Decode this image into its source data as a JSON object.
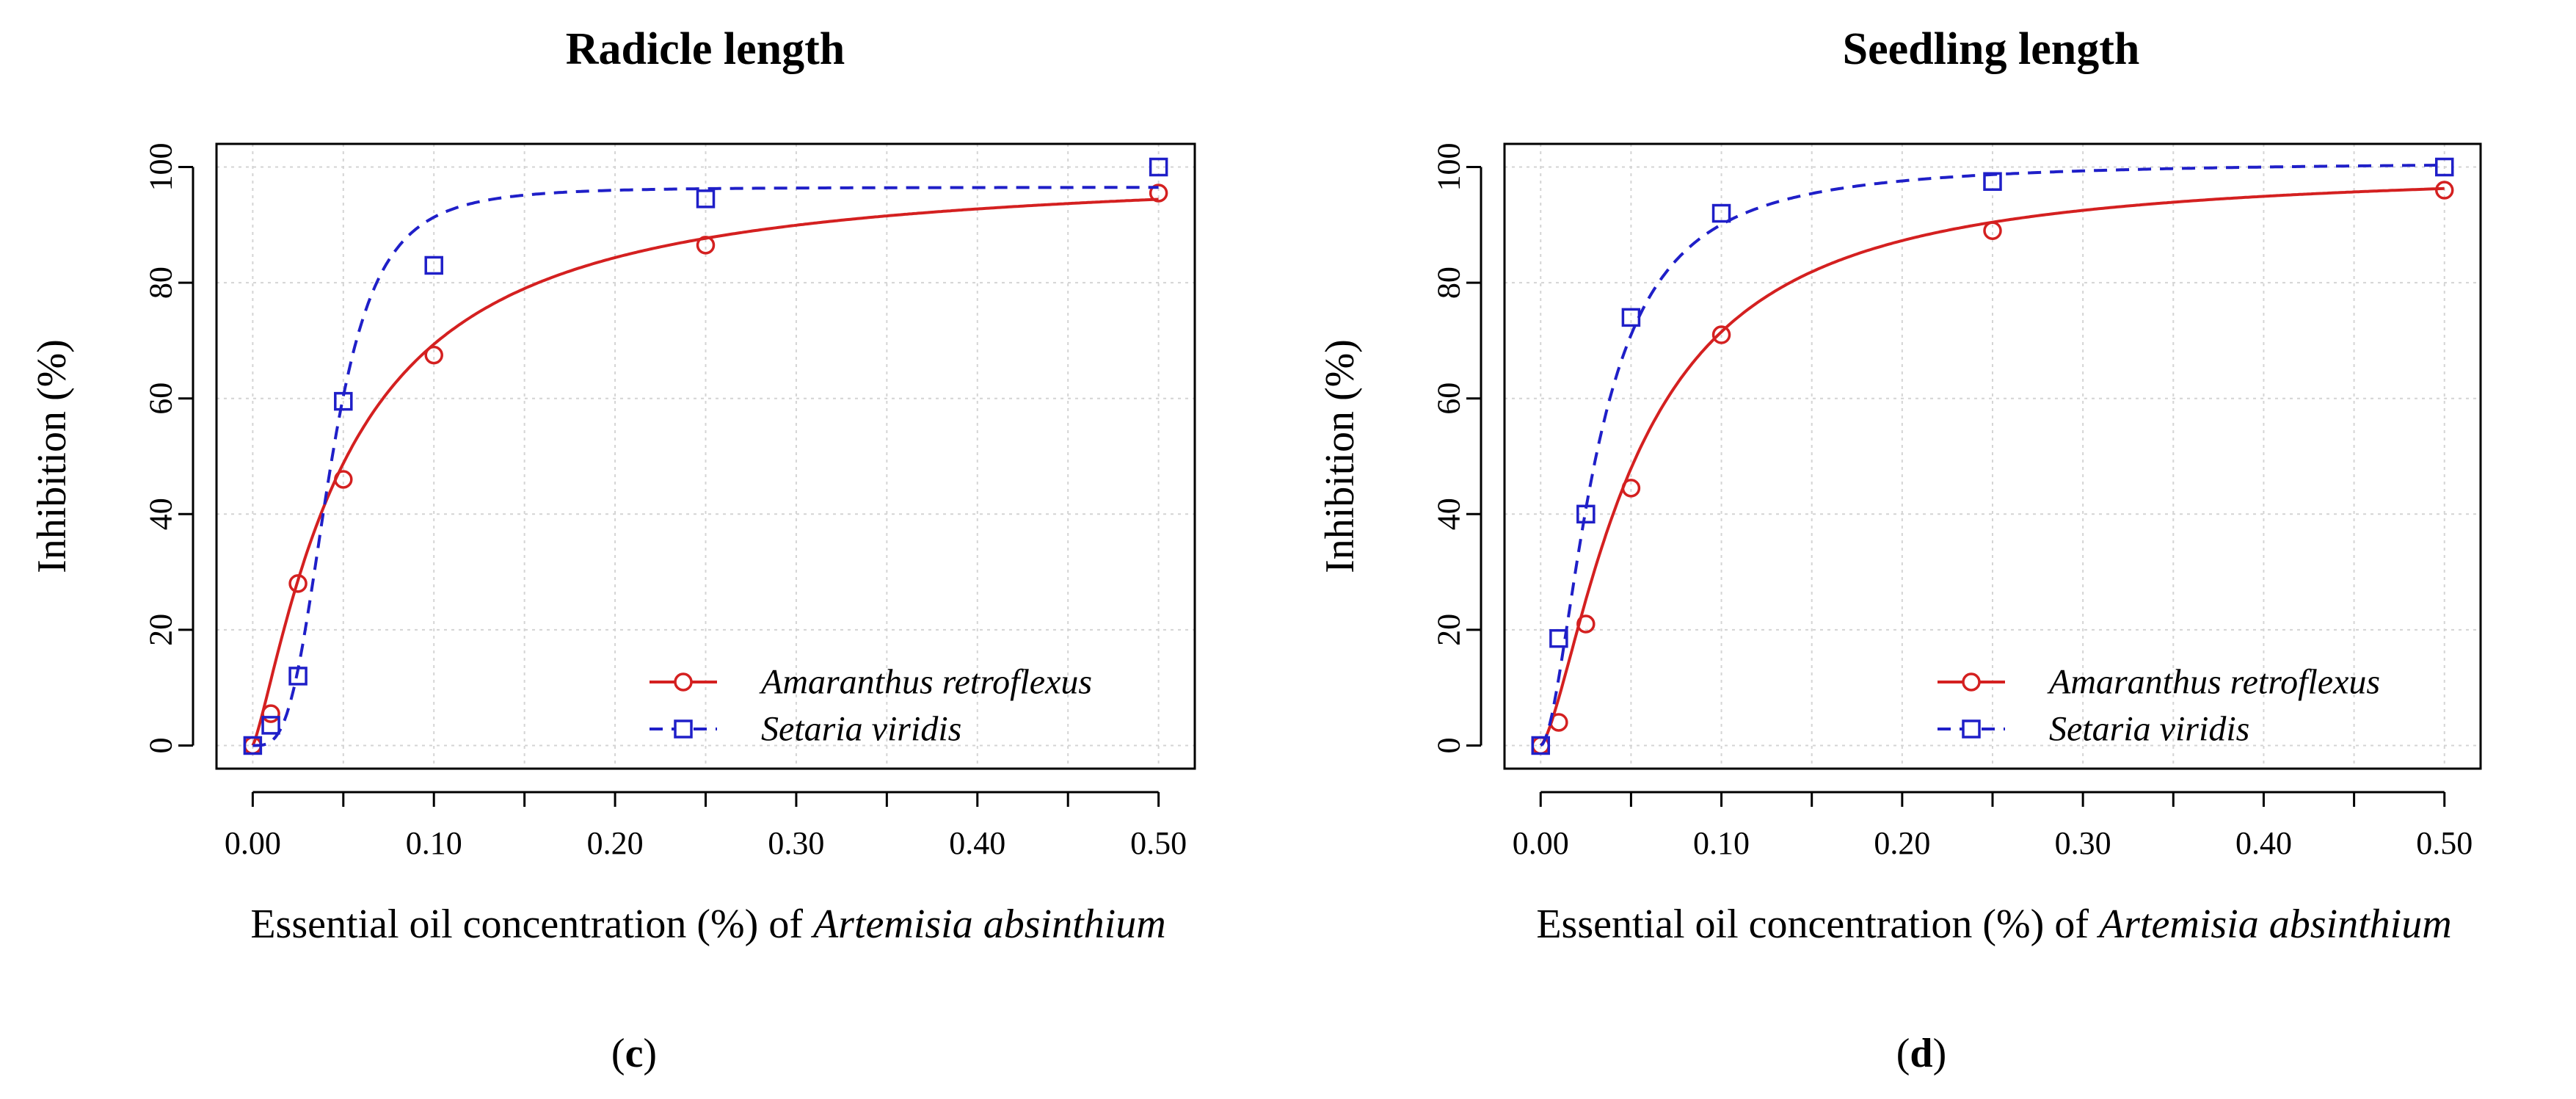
{
  "colors": {
    "series_a": "#d42020",
    "series_b": "#1f1fc8"
  },
  "chart_data": [
    {
      "type": "scatter",
      "panel": "c",
      "panel_label": "c",
      "title": "Radicle length",
      "xlabel_prefix": "Essential oil concentration (%) of ",
      "xlabel_species": "Artemisia absinthium",
      "ylabel": "Inhibition (%)",
      "xlim": [
        0,
        0.5
      ],
      "ylim": [
        0,
        100
      ],
      "grid": true,
      "legend_position": "bottom-right",
      "x_ticks": [
        "0.00",
        "0.10",
        "0.20",
        "0.30",
        "0.40",
        "0.50"
      ],
      "x_tick_values": [
        0,
        0.1,
        0.2,
        0.3,
        0.4,
        0.5
      ],
      "x_minor_ticks": [
        0.05,
        0.15,
        0.25,
        0.35,
        0.45
      ],
      "y_ticks": [
        "0",
        "20",
        "40",
        "60",
        "80",
        "100"
      ],
      "y_tick_values": [
        0,
        20,
        40,
        60,
        80,
        100
      ],
      "x": [
        0,
        0.01,
        0.025,
        0.05,
        0.1,
        0.25,
        0.5
      ],
      "series": [
        {
          "name": "Amaranthus retroflexus",
          "marker": "circle",
          "line": "solid",
          "color_key": "series_a",
          "values": [
            0,
            5.5,
            28,
            46,
            67.5,
            86.5,
            95.5
          ],
          "fit": {
            "model": "log-logistic",
            "lower": 0,
            "upper": 100,
            "ec50": 0.052,
            "slope": 1.25
          }
        },
        {
          "name": "Setaria viridis",
          "marker": "square",
          "line": "dashed",
          "color_key": "series_b",
          "values": [
            0,
            3.5,
            12,
            59.5,
            83,
            94.5,
            100
          ],
          "fit": {
            "model": "log-logistic",
            "lower": 0,
            "upper": 96.5,
            "ec50": 0.043,
            "slope": 3.4
          }
        }
      ]
    },
    {
      "type": "scatter",
      "panel": "d",
      "panel_label": "d",
      "title": "Seedling length",
      "xlabel_prefix": "Essential oil concentration (%) of ",
      "xlabel_species": "Artemisia absinthium",
      "ylabel": "Inhibition (%)",
      "xlim": [
        0,
        0.5
      ],
      "ylim": [
        0,
        100
      ],
      "grid": true,
      "legend_position": "bottom-right",
      "x_ticks": [
        "0.00",
        "0.10",
        "0.20",
        "0.30",
        "0.40",
        "0.50"
      ],
      "x_tick_values": [
        0,
        0.1,
        0.2,
        0.3,
        0.4,
        0.5
      ],
      "x_minor_ticks": [
        0.05,
        0.15,
        0.25,
        0.35,
        0.45
      ],
      "y_ticks": [
        "0",
        "20",
        "40",
        "60",
        "80",
        "100"
      ],
      "y_tick_values": [
        0,
        20,
        40,
        60,
        80,
        100
      ],
      "x": [
        0,
        0.01,
        0.025,
        0.05,
        0.1,
        0.25,
        0.5
      ],
      "series": [
        {
          "name": "Amaranthus retroflexus",
          "marker": "circle",
          "line": "solid",
          "color_key": "series_a",
          "values": [
            0,
            4,
            21,
            44.5,
            71,
            89,
            96
          ],
          "fit": {
            "model": "log-logistic",
            "lower": 0,
            "upper": 100,
            "ec50": 0.053,
            "slope": 1.45
          }
        },
        {
          "name": "Setaria viridis",
          "marker": "square",
          "line": "dashed",
          "color_key": "series_b",
          "values": [
            0,
            18.5,
            40,
            74,
            92,
            97.5,
            100
          ],
          "fit": {
            "model": "log-logistic",
            "lower": 0,
            "upper": 101,
            "ec50": 0.031,
            "slope": 1.8
          }
        }
      ]
    }
  ]
}
